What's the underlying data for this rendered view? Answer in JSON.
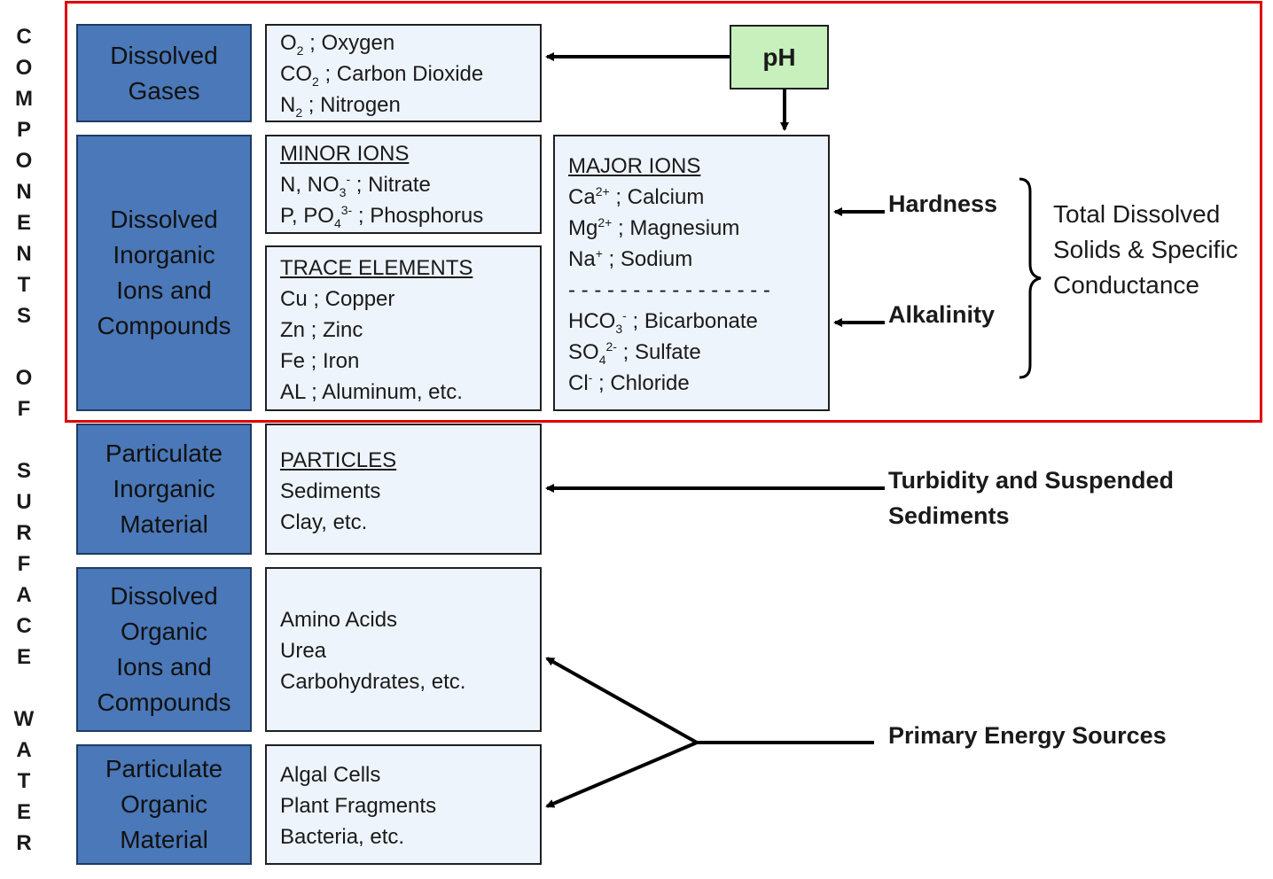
{
  "side_title": [
    "C",
    "O",
    "M",
    "P",
    "O",
    "N",
    "E",
    "N",
    "T",
    "S",
    "",
    "O",
    "F",
    "",
    "S",
    "U",
    "R",
    "F",
    "A",
    "C",
    "E",
    "",
    "W",
    "A",
    "T",
    "E",
    "R"
  ],
  "categories": {
    "dissolved_gases": [
      "Dissolved",
      "Gases"
    ],
    "dissolved_inorganic": [
      "Dissolved",
      "Inorganic",
      "Ions and",
      "Compounds"
    ],
    "particulate_inorganic": [
      "Particulate",
      "Inorganic",
      "Material"
    ],
    "dissolved_organic": [
      "Dissolved",
      "Organic",
      "Ions and",
      "Compounds"
    ],
    "particulate_organic": [
      "Particulate",
      "Organic",
      "Material"
    ]
  },
  "gases": {
    "o2": {
      "sym": "O",
      "sub": "2",
      "rest": " ; Oxygen"
    },
    "co2": {
      "sym": "CO",
      "sub": "2",
      "rest": " ; Carbon Dioxide"
    },
    "n2": {
      "sym": "N",
      "sub": "2",
      "rest": " ; Nitrogen"
    }
  },
  "minor_ions": {
    "heading": "MINOR IONS",
    "nitrate": {
      "pre": "N, NO",
      "sub": "3",
      "sup": "-",
      "rest": " ; Nitrate"
    },
    "phosphorus": {
      "pre": "P, PO",
      "sub": "4",
      "sup": "3-",
      "rest": " ; Phosphorus"
    }
  },
  "trace_elements": {
    "heading": "TRACE ELEMENTS",
    "items": [
      "Cu ; Copper",
      "Zn ; Zinc",
      "Fe ; Iron",
      "AL ; Aluminum, etc."
    ]
  },
  "major_ions": {
    "heading": "MAJOR IONS",
    "calcium": {
      "sym": "Ca",
      "sup": "2+",
      "rest": " ; Calcium"
    },
    "magnesium": {
      "sym": "Mg",
      "sup": "2+",
      "rest": " ; Magnesium"
    },
    "sodium": {
      "sym": "Na",
      "sup": "+",
      "rest": " ; Sodium"
    },
    "divider": "- - - - - - - - - - - - - - - -",
    "bicarbonate": {
      "sym": "HCO",
      "sub": "3",
      "sup": "-",
      "rest": " ; Bicarbonate"
    },
    "sulfate": {
      "sym": "SO",
      "sub": "4",
      "sup": "2-",
      "rest": " ; Sulfate"
    },
    "chloride": {
      "sym": "Cl",
      "sup": "-",
      "rest": " ; Chloride"
    }
  },
  "particles": {
    "heading": "PARTICLES",
    "items": [
      "Sediments",
      "Clay, etc."
    ]
  },
  "organic_dissolved": {
    "items": [
      "Amino Acids",
      "Urea",
      "Carbohydrates, etc."
    ]
  },
  "organic_particulate": {
    "items": [
      "Algal Cells",
      "Plant Fragments",
      "Bacteria, etc."
    ]
  },
  "labels": {
    "ph": "pH",
    "hardness": "Hardness",
    "alkalinity": "Alkalinity",
    "tds": [
      "Total Dissolved",
      "Solids & Specific",
      "Conductance"
    ],
    "turbidity": [
      "Turbidity and Suspended",
      "Sediments"
    ],
    "energy": "Primary Energy Sources"
  },
  "colors": {
    "category_fill": "#4a78b8",
    "box_fill": "#eef4fc",
    "ph_fill": "#c8f0bd",
    "highlight_frame": "#e00000"
  }
}
